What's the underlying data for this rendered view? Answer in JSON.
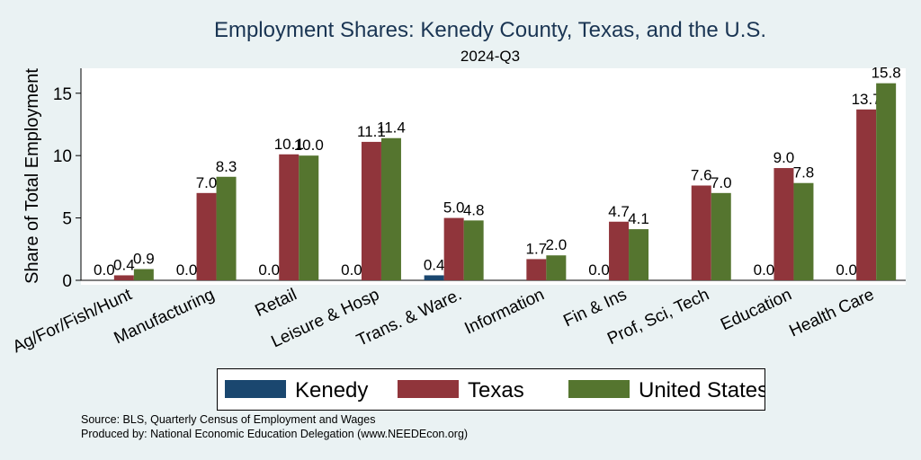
{
  "chart_data": {
    "type": "bar",
    "title": "Employment Shares: Kenedy County, Texas, and the U.S.",
    "subtitle": "2024-Q3",
    "ylabel": "Share of Total Employment",
    "xlabel": "",
    "ylim": [
      0,
      17
    ],
    "yticks": [
      0,
      5,
      10,
      15
    ],
    "grid": false,
    "legend_position": "bottom",
    "categories": [
      "Ag/For/Fish/Hunt",
      "Manufacturing",
      "Retail",
      "Leisure & Hosp",
      "Trans. & Ware.",
      "Information",
      "Fin & Ins",
      "Prof, Sci, Tech",
      "Education",
      "Health Care"
    ],
    "series": [
      {
        "name": "Kenedy",
        "color": "#1a476f",
        "values": [
          0.0,
          0.0,
          0.0,
          0.0,
          0.4,
          null,
          0.0,
          null,
          0.0,
          0.0
        ],
        "labels": [
          "0.0",
          "0.0",
          "0.0",
          "0.0",
          "0.4",
          "",
          "0.0",
          "",
          "0.0",
          "0.0"
        ]
      },
      {
        "name": "Texas",
        "color": "#90353b",
        "values": [
          0.4,
          7.0,
          10.1,
          11.1,
          5.0,
          1.7,
          4.7,
          7.6,
          9.0,
          13.7
        ],
        "labels": [
          "0.4",
          "7.0",
          "10.1",
          "11.1",
          "5.0",
          "1.7",
          "4.7",
          "7.6",
          "9.0",
          "13.7"
        ]
      },
      {
        "name": "United States",
        "color": "#55752f",
        "values": [
          0.9,
          8.3,
          10.0,
          11.4,
          4.8,
          2.0,
          4.1,
          7.0,
          7.8,
          15.8
        ],
        "labels": [
          "0.9",
          "8.3",
          "10.0",
          "11.4",
          "4.8",
          "2.0",
          "4.1",
          "7.0",
          "7.8",
          "15.8"
        ]
      }
    ]
  },
  "notes": {
    "source": "Source: BLS, Quarterly Census of Employment and Wages",
    "produced": "Produced by: National Economic Education Delegation (www.NEEDEcon.org)"
  }
}
